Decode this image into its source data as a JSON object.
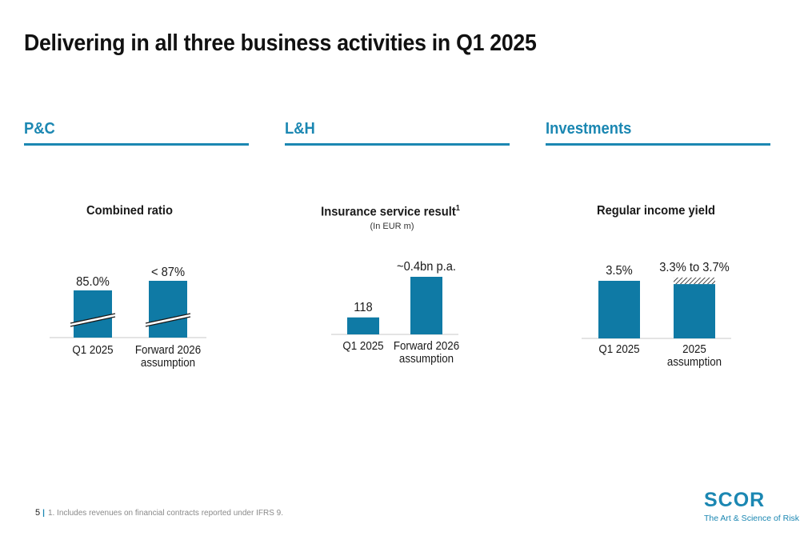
{
  "title": "Delivering in all three business activities in Q1 2025",
  "sections": [
    {
      "label": "P&C"
    },
    {
      "label": "L&H"
    },
    {
      "label": "Investments"
    }
  ],
  "colors": {
    "accent": "#1b87b2",
    "bar": "#0f7aa5"
  },
  "chart_data": [
    {
      "type": "bar",
      "title": "Combined ratio",
      "categories": [
        "Q1 2025",
        "Forward 2026 assumption"
      ],
      "values": [
        85.0,
        87
      ],
      "value_labels": [
        "85.0%",
        "< 87%"
      ],
      "axis_break": true
    },
    {
      "type": "bar",
      "title": "Insurance service result",
      "title_superscript": "1",
      "subtitle": "(In EUR m)",
      "categories": [
        "Q1 2025",
        "Forward 2026 assumption"
      ],
      "values": [
        118,
        400
      ],
      "value_labels": [
        "118",
        "~0.4bn p.a."
      ]
    },
    {
      "type": "bar",
      "title": "Regular income yield",
      "categories": [
        "Q1 2025",
        "2025 assumption"
      ],
      "values": [
        3.5,
        3.7
      ],
      "range_low": [
        null,
        3.3
      ],
      "value_labels": [
        "3.5%",
        "3.3% to 3.7%"
      ]
    }
  ],
  "footer": {
    "page": "5",
    "separator": "|",
    "note": "1. Includes revenues on financial contracts reported under IFRS 9."
  },
  "logo": {
    "name": "SCOR",
    "tagline": "The Art & Science of Risk"
  }
}
